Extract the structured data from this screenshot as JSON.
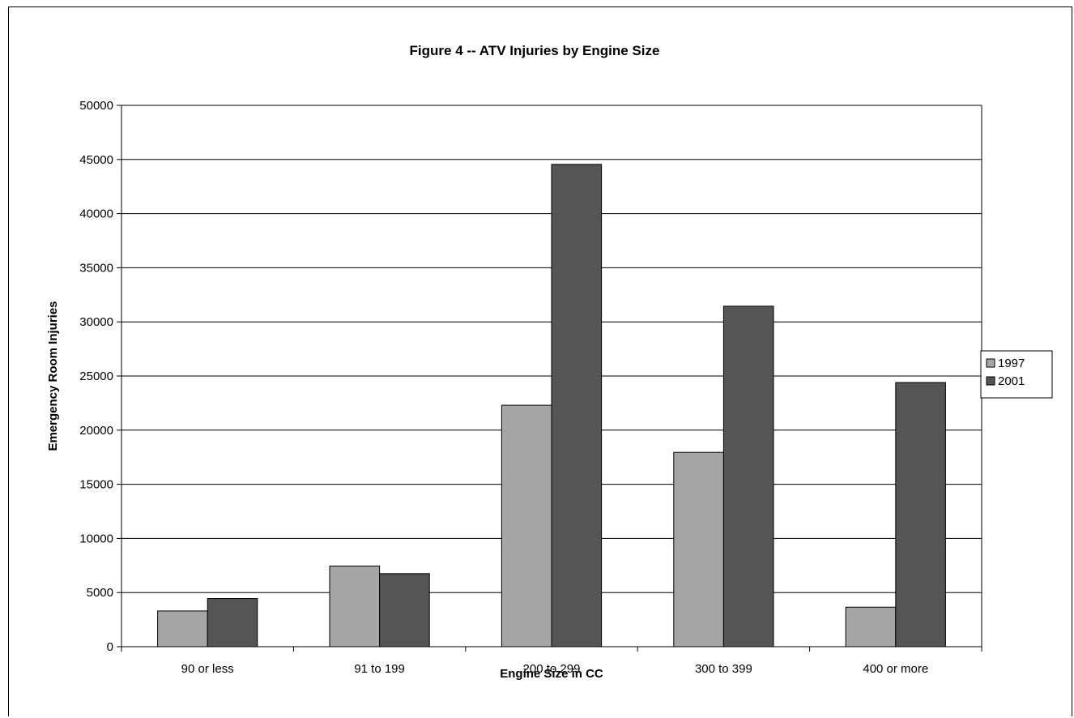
{
  "chart_data": {
    "type": "bar",
    "title": "Figure 4 -- ATV Injuries by Engine Size",
    "xlabel": "Engine Size in CC",
    "ylabel": "Emergency Room Injuries",
    "categories": [
      "90 or less",
      "91 to 199",
      "200 to 299",
      "300 to 399",
      "400 or more"
    ],
    "series": [
      {
        "name": "1997",
        "values": [
          3300,
          7450,
          22300,
          17950,
          3650
        ],
        "color": "#a6a6a6"
      },
      {
        "name": "2001",
        "values": [
          4450,
          6750,
          44550,
          31450,
          24400
        ],
        "color": "#555555"
      }
    ],
    "ylim": [
      0,
      50000
    ],
    "yticks": [
      0,
      5000,
      10000,
      15000,
      20000,
      25000,
      30000,
      35000,
      40000,
      45000,
      50000
    ],
    "grid": true,
    "legend": "right"
  }
}
